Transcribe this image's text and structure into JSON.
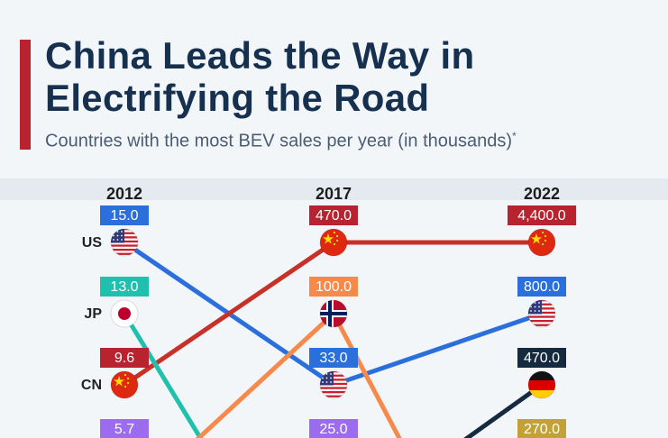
{
  "header": {
    "title_line1": "China Leads the Way in",
    "title_line2": "Electrifying the Road",
    "subtitle": "Countries with the most BEV sales per year (in thousands)",
    "subtitle_mark": "*",
    "accent_color": "#b8232f"
  },
  "chart_data": {
    "type": "line",
    "title": "China Leads the Way in Electrifying the Road",
    "subtitle": "Countries with the most BEV sales per year (in thousands)*",
    "chart_style": "bump/rank chart",
    "x": [
      "2012",
      "2017",
      "2022"
    ],
    "series": [
      {
        "name": "US",
        "color": "#2b6fdc",
        "label_color": "#2b6fdc",
        "flag": "us-flag-icon",
        "ranks": [
          1,
          3,
          2
        ],
        "values": [
          15.0,
          33.0,
          800.0
        ],
        "labels": [
          "15.0",
          "33.0",
          "800.0"
        ]
      },
      {
        "name": "JP",
        "color": "#1fc0ad",
        "label_color": "#1fc0ad",
        "flag": "japan-flag-icon",
        "ranks": [
          2,
          null,
          null
        ],
        "values": [
          13.0,
          null,
          null
        ],
        "labels": [
          "13.0",
          null,
          null
        ]
      },
      {
        "name": "CN",
        "color": "#c73128",
        "label_color": "#b8232f",
        "flag": "china-flag-icon",
        "ranks": [
          3,
          1,
          1
        ],
        "values": [
          9.6,
          470.0,
          4400.0
        ],
        "labels": [
          "9.6",
          "470.0",
          "4,400.0"
        ]
      },
      {
        "name": "Norway",
        "color": "#f7894a",
        "label_color": "#f7894a",
        "flag": "norway-flag-icon",
        "ranks": [
          null,
          2,
          null
        ],
        "values": [
          null,
          100.0,
          null
        ],
        "labels": [
          null,
          "100.0",
          null
        ]
      },
      {
        "name": "Germany",
        "color": "#15293f",
        "label_color": "#15293f",
        "flag": "germany-flag-icon",
        "ranks": [
          null,
          null,
          3
        ],
        "values": [
          null,
          null,
          470.0
        ],
        "labels": [
          null,
          null,
          "470.0"
        ]
      }
    ],
    "partial_row_labels": [
      {
        "x": "2012",
        "label": "5.7",
        "color": "#9c6cf0"
      },
      {
        "x": "2017",
        "label": "25.0",
        "color": "#9c6cf0"
      },
      {
        "x": "2022",
        "label": "270.0",
        "color": "#c2a135"
      }
    ],
    "row_country_codes": [
      "US",
      "JP",
      "CN"
    ]
  }
}
